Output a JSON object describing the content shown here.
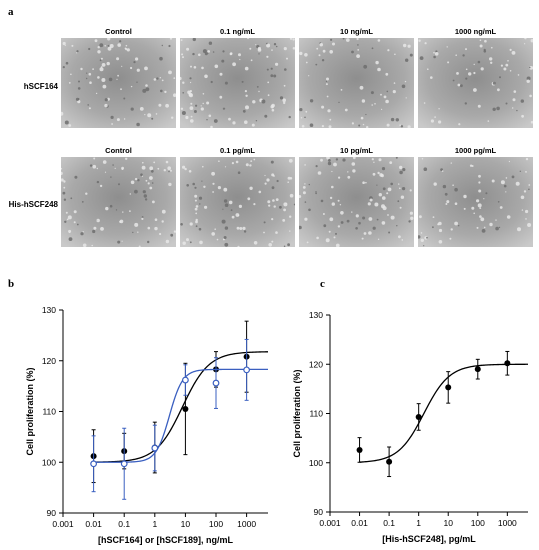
{
  "panel_a": {
    "letter": "a",
    "top_row": {
      "label": "hSCF164",
      "columns": [
        "Control",
        "0.1 ng/mL",
        "10 ng/mL",
        "1000 ng/mL"
      ]
    },
    "bottom_row": {
      "label": "His-hSCF248",
      "columns": [
        "Control",
        "0.1 pg/mL",
        "10 pg/mL",
        "1000 pg/mL"
      ]
    }
  },
  "panel_b": {
    "letter": "b"
  },
  "panel_c": {
    "letter": "c"
  },
  "chart_data": [
    {
      "type": "scatter",
      "panel": "b",
      "title": "",
      "xlabel": "[hSCF164] or [hSCF189], ng/mL",
      "ylabel": "Cell proliferation (%)",
      "xscale": "log",
      "xlim": [
        0.001,
        5000
      ],
      "ylim": [
        90,
        130
      ],
      "xticks": [
        "0.001",
        "0.01",
        "0.1",
        "1",
        "10",
        "100",
        "1000"
      ],
      "yticks": [
        90,
        100,
        110,
        120,
        130
      ],
      "grid": false,
      "series": [
        {
          "color": "#000000",
          "marker": "filled-circle",
          "x": [
            0.01,
            0.1,
            1,
            10,
            100,
            1000
          ],
          "y": [
            101.2,
            102.2,
            102.9,
            110.5,
            118.3,
            120.8
          ],
          "err": [
            5.2,
            3.5,
            5.0,
            9.0,
            3.5,
            7.0
          ],
          "fit": {
            "bottom": 100,
            "top": 121.8,
            "ec50": 8,
            "hill": 1.0
          }
        },
        {
          "color": "#3a5fc0",
          "marker": "open-circle",
          "x": [
            0.01,
            0.1,
            1,
            10,
            100,
            1000
          ],
          "y": [
            99.7,
            99.7,
            102.8,
            116.2,
            115.6,
            118.2
          ],
          "err": [
            5.5,
            7.0,
            4.5,
            3.0,
            5.0,
            6.0
          ],
          "fit": {
            "bottom": 100,
            "top": 118.3,
            "ec50": 3.0,
            "hill": 2.0
          }
        }
      ]
    },
    {
      "type": "scatter",
      "panel": "c",
      "title": "",
      "xlabel": "[His-hSCF248], pg/mL",
      "ylabel": "Cell proliferation (%)",
      "xscale": "log",
      "xlim": [
        0.001,
        5000
      ],
      "ylim": [
        90,
        130
      ],
      "xticks": [
        "0.001",
        "0.01",
        "0.1",
        "1",
        "10",
        "100",
        "1000"
      ],
      "yticks": [
        90,
        100,
        110,
        120,
        130
      ],
      "grid": false,
      "series": [
        {
          "color": "#000000",
          "marker": "filled-circle",
          "x": [
            0.01,
            0.1,
            1,
            10,
            100,
            1000
          ],
          "y": [
            102.6,
            100.2,
            109.3,
            115.3,
            119.0,
            120.2
          ],
          "err": [
            2.5,
            3.0,
            2.7,
            3.2,
            2.0,
            2.4
          ],
          "fit": {
            "bottom": 100,
            "top": 120,
            "ec50": 1.5,
            "hill": 1.0
          }
        }
      ]
    }
  ]
}
